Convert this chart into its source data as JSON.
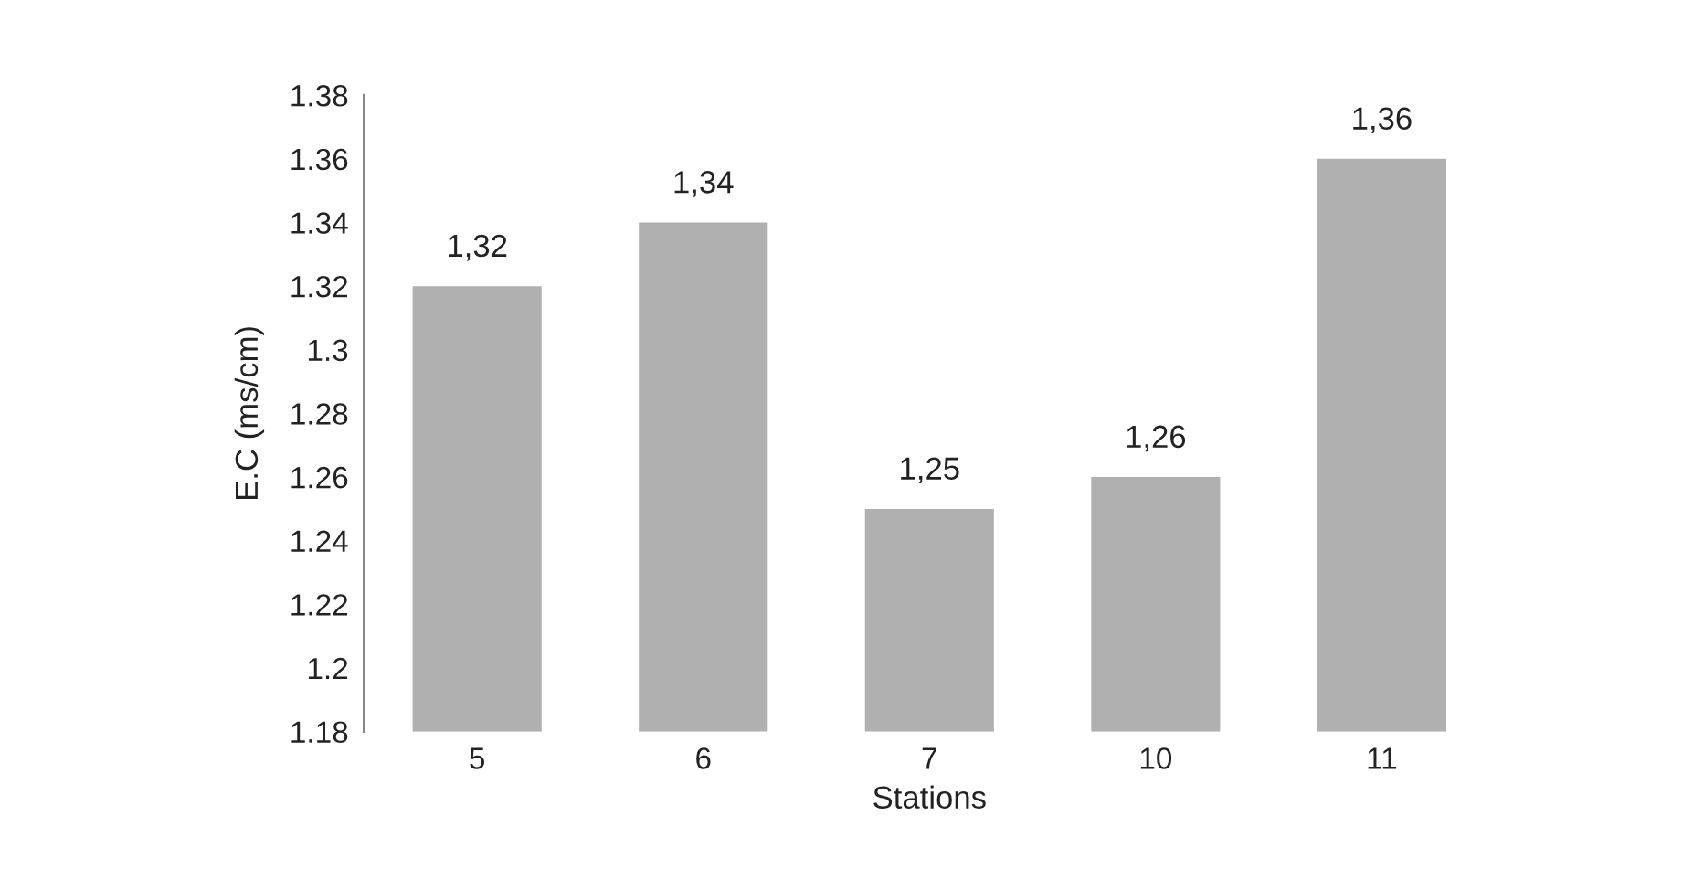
{
  "chart_data": {
    "type": "bar",
    "xlabel": "Stations",
    "ylabel": "E.C (ms/cm)",
    "categories": [
      "5",
      "6",
      "7",
      "10",
      "11"
    ],
    "values": [
      1.32,
      1.34,
      1.25,
      1.26,
      1.36
    ],
    "value_labels": [
      "1,32",
      "1,34",
      "1,25",
      "1,26",
      "1,36"
    ],
    "color": "#b0b0b0",
    "ylim": [
      1.18,
      1.38
    ],
    "yticks": [
      1.18,
      1.2,
      1.22,
      1.24,
      1.26,
      1.28,
      1.3,
      1.32,
      1.34,
      1.36,
      1.38
    ],
    "grid": false,
    "legend": false
  }
}
